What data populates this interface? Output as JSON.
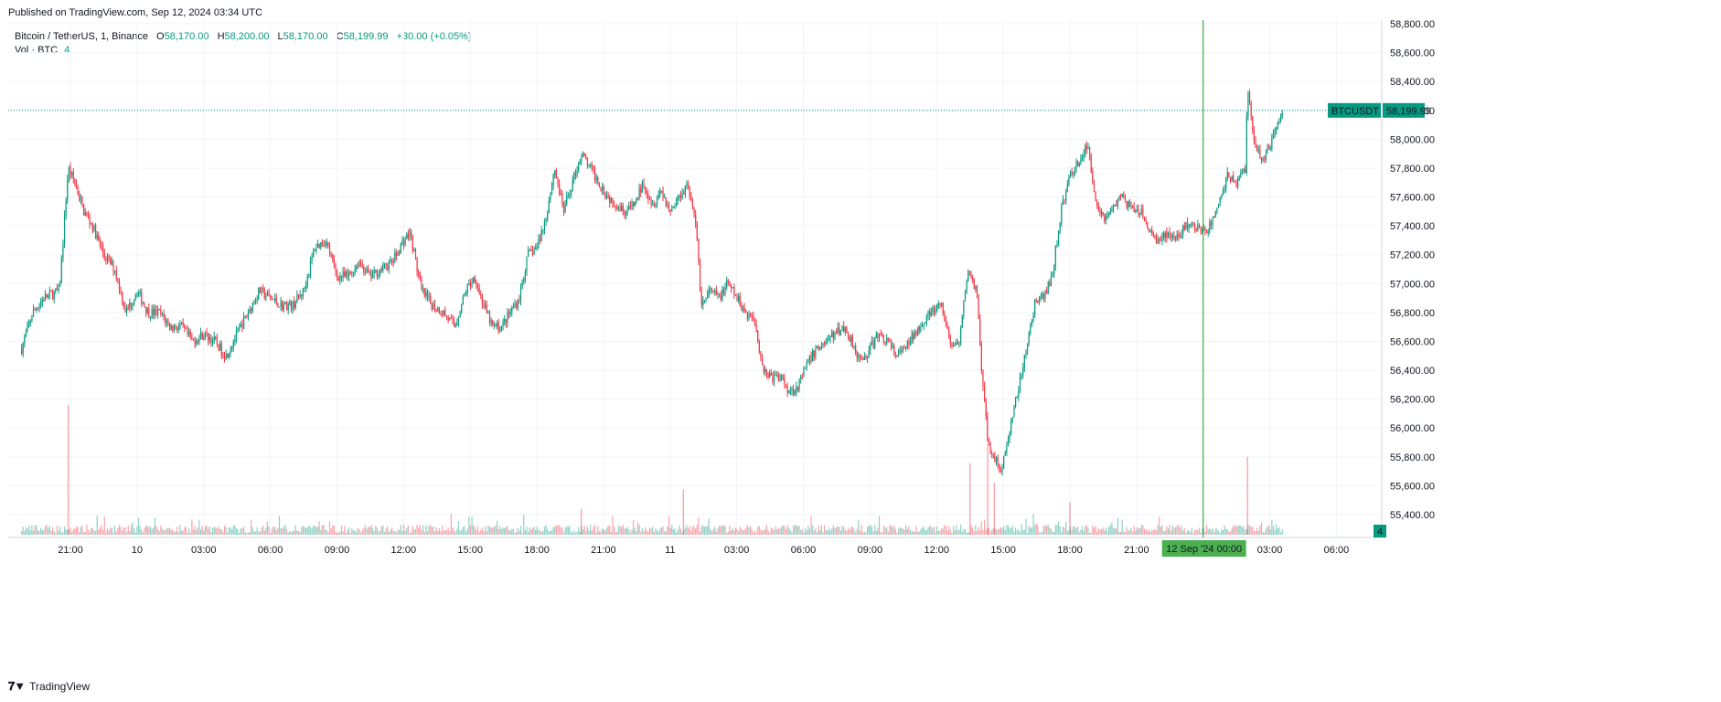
{
  "published": "Published on TradingView.com, Sep 12, 2024 03:34 UTC",
  "footer": {
    "brand": "TradingView",
    "logo_icon": "tradingview-logo-icon"
  },
  "legend": {
    "symbol": "Bitcoin / TetherUS, 1, Binance",
    "o_label": "O",
    "o_value": "58,170.00",
    "h_label": "H",
    "h_value": "58,200.00",
    "l_label": "L",
    "l_value": "58,170.00",
    "c_label": "C",
    "c_value": "58,199.99",
    "change": "+30.00 (+0.05%)",
    "volume_label": "Vol · BTC",
    "volume_value": "4"
  },
  "colors": {
    "up": "#089981",
    "down": "#F23645",
    "crosshair": "#4CAF50",
    "grid": "#F0F3FA"
  },
  "chart_data": {
    "type": "candlestick",
    "symbol": "BTCUSDT",
    "last_price_label": "58,199.99",
    "last_price": 58199.99,
    "volume_badge": "4",
    "crosshair_time_label": "12 Sep '24   00:00",
    "ylim": [
      55200,
      58800
    ],
    "yticks": [
      "58,800.00",
      "58,600.00",
      "58,400.00",
      "58,200.00",
      "58,000.00",
      "57,800.00",
      "57,600.00",
      "57,400.00",
      "57,200.00",
      "57,000.00",
      "56,800.00",
      "56,600.00",
      "56,400.00",
      "56,200.00",
      "56,000.00",
      "55,800.00",
      "55,600.00",
      "55,400.00"
    ],
    "ytick_values": [
      58800,
      58600,
      58400,
      58200,
      58000,
      57800,
      57600,
      57400,
      57200,
      57000,
      56800,
      56600,
      56400,
      56200,
      56000,
      55800,
      55600,
      55400
    ],
    "xticks": [
      {
        "label": "21:00",
        "hours": 21
      },
      {
        "label": "10",
        "hours": 24
      },
      {
        "label": "03:00",
        "hours": 27
      },
      {
        "label": "06:00",
        "hours": 30
      },
      {
        "label": "09:00",
        "hours": 33
      },
      {
        "label": "12:00",
        "hours": 36
      },
      {
        "label": "15:00",
        "hours": 39
      },
      {
        "label": "18:00",
        "hours": 42
      },
      {
        "label": "21:00",
        "hours": 45
      },
      {
        "label": "11",
        "hours": 48
      },
      {
        "label": "03:00",
        "hours": 51
      },
      {
        "label": "06:00",
        "hours": 54
      },
      {
        "label": "09:00",
        "hours": 57
      },
      {
        "label": "12:00",
        "hours": 60
      },
      {
        "label": "15:00",
        "hours": 63
      },
      {
        "label": "18:00",
        "hours": 66
      },
      {
        "label": "21:00",
        "hours": 69
      },
      {
        "label": "03:00",
        "hours": 75
      },
      {
        "label": "06:00",
        "hours": 78
      }
    ],
    "x_unit": "hours since Sep 9 00:00 UTC",
    "series_close_hourly": [
      {
        "t": 18.8,
        "p": 56550
      },
      {
        "t": 19.3,
        "p": 56800
      },
      {
        "t": 19.8,
        "p": 56900
      },
      {
        "t": 20.5,
        "p": 56950
      },
      {
        "t": 20.9,
        "p": 57800
      },
      {
        "t": 21.2,
        "p": 57700
      },
      {
        "t": 21.6,
        "p": 57500
      },
      {
        "t": 22.0,
        "p": 57400
      },
      {
        "t": 22.5,
        "p": 57200
      },
      {
        "t": 23.0,
        "p": 57100
      },
      {
        "t": 23.5,
        "p": 56800
      },
      {
        "t": 24.0,
        "p": 56950
      },
      {
        "t": 24.5,
        "p": 56800
      },
      {
        "t": 25.0,
        "p": 56800
      },
      {
        "t": 25.5,
        "p": 56700
      },
      {
        "t": 26.0,
        "p": 56700
      },
      {
        "t": 26.5,
        "p": 56600
      },
      {
        "t": 27.0,
        "p": 56650
      },
      {
        "t": 27.5,
        "p": 56600
      },
      {
        "t": 28.0,
        "p": 56500
      },
      {
        "t": 28.5,
        "p": 56650
      },
      {
        "t": 29.0,
        "p": 56800
      },
      {
        "t": 29.5,
        "p": 56950
      },
      {
        "t": 30.0,
        "p": 56900
      },
      {
        "t": 30.5,
        "p": 56850
      },
      {
        "t": 31.0,
        "p": 56850
      },
      {
        "t": 31.5,
        "p": 56950
      },
      {
        "t": 32.0,
        "p": 57250
      },
      {
        "t": 32.5,
        "p": 57300
      },
      {
        "t": 33.0,
        "p": 57050
      },
      {
        "t": 33.5,
        "p": 57050
      },
      {
        "t": 34.0,
        "p": 57150
      },
      {
        "t": 34.5,
        "p": 57050
      },
      {
        "t": 35.0,
        "p": 57100
      },
      {
        "t": 35.5,
        "p": 57150
      },
      {
        "t": 36.0,
        "p": 57300
      },
      {
        "t": 36.3,
        "p": 57350
      },
      {
        "t": 36.8,
        "p": 56950
      },
      {
        "t": 37.3,
        "p": 56850
      },
      {
        "t": 37.8,
        "p": 56800
      },
      {
        "t": 38.3,
        "p": 56700
      },
      {
        "t": 38.8,
        "p": 56950
      },
      {
        "t": 39.2,
        "p": 57050
      },
      {
        "t": 39.6,
        "p": 56850
      },
      {
        "t": 40.0,
        "p": 56700
      },
      {
        "t": 40.4,
        "p": 56700
      },
      {
        "t": 40.8,
        "p": 56800
      },
      {
        "t": 41.2,
        "p": 56900
      },
      {
        "t": 41.6,
        "p": 57200
      },
      {
        "t": 42.0,
        "p": 57250
      },
      {
        "t": 42.4,
        "p": 57450
      },
      {
        "t": 42.8,
        "p": 57800
      },
      {
        "t": 43.2,
        "p": 57500
      },
      {
        "t": 43.6,
        "p": 57700
      },
      {
        "t": 44.0,
        "p": 57900
      },
      {
        "t": 44.4,
        "p": 57800
      },
      {
        "t": 44.8,
        "p": 57700
      },
      {
        "t": 45.2,
        "p": 57600
      },
      {
        "t": 45.6,
        "p": 57550
      },
      {
        "t": 46.0,
        "p": 57500
      },
      {
        "t": 46.4,
        "p": 57550
      },
      {
        "t": 46.8,
        "p": 57700
      },
      {
        "t": 47.2,
        "p": 57550
      },
      {
        "t": 47.6,
        "p": 57650
      },
      {
        "t": 48.0,
        "p": 57500
      },
      {
        "t": 48.4,
        "p": 57600
      },
      {
        "t": 48.8,
        "p": 57700
      },
      {
        "t": 49.2,
        "p": 57350
      },
      {
        "t": 49.4,
        "p": 56850
      },
      {
        "t": 49.8,
        "p": 56950
      },
      {
        "t": 50.2,
        "p": 56900
      },
      {
        "t": 50.6,
        "p": 57000
      },
      {
        "t": 51.0,
        "p": 56900
      },
      {
        "t": 51.4,
        "p": 56800
      },
      {
        "t": 51.8,
        "p": 56750
      },
      {
        "t": 52.2,
        "p": 56400
      },
      {
        "t": 52.6,
        "p": 56350
      },
      {
        "t": 53.0,
        "p": 56350
      },
      {
        "t": 53.4,
        "p": 56250
      },
      {
        "t": 53.8,
        "p": 56300
      },
      {
        "t": 54.2,
        "p": 56450
      },
      {
        "t": 54.6,
        "p": 56550
      },
      {
        "t": 55.0,
        "p": 56600
      },
      {
        "t": 55.4,
        "p": 56650
      },
      {
        "t": 55.8,
        "p": 56700
      },
      {
        "t": 56.2,
        "p": 56600
      },
      {
        "t": 56.6,
        "p": 56450
      },
      {
        "t": 57.0,
        "p": 56550
      },
      {
        "t": 57.4,
        "p": 56650
      },
      {
        "t": 57.8,
        "p": 56600
      },
      {
        "t": 58.2,
        "p": 56500
      },
      {
        "t": 58.6,
        "p": 56550
      },
      {
        "t": 59.0,
        "p": 56650
      },
      {
        "t": 59.4,
        "p": 56750
      },
      {
        "t": 59.8,
        "p": 56800
      },
      {
        "t": 60.2,
        "p": 56850
      },
      {
        "t": 60.6,
        "p": 56600
      },
      {
        "t": 61.0,
        "p": 56550
      },
      {
        "t": 61.4,
        "p": 57100
      },
      {
        "t": 61.8,
        "p": 56950
      },
      {
        "t": 62.0,
        "p": 56450
      },
      {
        "t": 62.3,
        "p": 55900
      },
      {
        "t": 62.6,
        "p": 55800
      },
      {
        "t": 62.9,
        "p": 55700
      },
      {
        "t": 63.2,
        "p": 55900
      },
      {
        "t": 63.5,
        "p": 56150
      },
      {
        "t": 63.8,
        "p": 56350
      },
      {
        "t": 64.1,
        "p": 56600
      },
      {
        "t": 64.4,
        "p": 56850
      },
      {
        "t": 64.8,
        "p": 56900
      },
      {
        "t": 65.2,
        "p": 57050
      },
      {
        "t": 65.6,
        "p": 57500
      },
      {
        "t": 66.0,
        "p": 57750
      },
      {
        "t": 66.4,
        "p": 57850
      },
      {
        "t": 66.8,
        "p": 57950
      },
      {
        "t": 67.2,
        "p": 57550
      },
      {
        "t": 67.6,
        "p": 57450
      },
      {
        "t": 68.0,
        "p": 57550
      },
      {
        "t": 68.4,
        "p": 57600
      },
      {
        "t": 68.8,
        "p": 57500
      },
      {
        "t": 69.2,
        "p": 57500
      },
      {
        "t": 69.6,
        "p": 57350
      },
      {
        "t": 70.0,
        "p": 57300
      },
      {
        "t": 70.4,
        "p": 57350
      },
      {
        "t": 70.8,
        "p": 57300
      },
      {
        "t": 71.2,
        "p": 57400
      },
      {
        "t": 71.6,
        "p": 57400
      },
      {
        "t": 72.0,
        "p": 57350
      },
      {
        "t": 72.3,
        "p": 57400
      },
      {
        "t": 72.7,
        "p": 57550
      },
      {
        "t": 73.1,
        "p": 57750
      },
      {
        "t": 73.5,
        "p": 57700
      },
      {
        "t": 73.9,
        "p": 57800
      },
      {
        "t": 74.0,
        "p": 58350
      },
      {
        "t": 74.3,
        "p": 58000
      },
      {
        "t": 74.6,
        "p": 57850
      },
      {
        "t": 75.0,
        "p": 57950
      },
      {
        "t": 75.4,
        "p": 58150
      },
      {
        "t": 75.6,
        "p": 58200
      }
    ],
    "volume_spikes": [
      {
        "t": 20.9,
        "v": 100
      },
      {
        "t": 48.6,
        "v": 35
      },
      {
        "t": 61.5,
        "v": 55
      },
      {
        "t": 62.3,
        "v": 70
      },
      {
        "t": 62.6,
        "v": 40
      },
      {
        "t": 74.0,
        "v": 60
      },
      {
        "t": 66.0,
        "v": 25
      },
      {
        "t": 44.0,
        "v": 20
      }
    ],
    "crosshair_hours": 72
  }
}
